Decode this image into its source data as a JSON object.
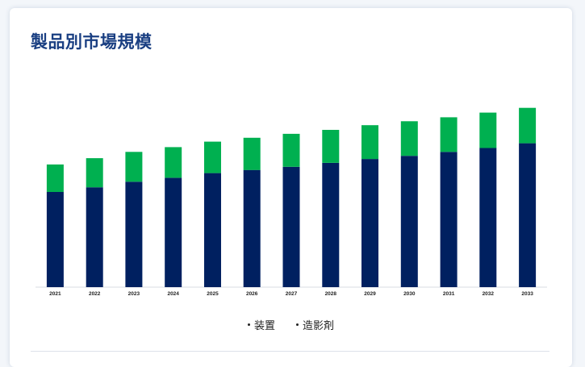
{
  "title": "製品別市場規模",
  "chart_data": {
    "type": "bar",
    "stacked": true,
    "categories": [
      "2021",
      "2022",
      "2023",
      "2024",
      "2025",
      "2026",
      "2027",
      "2028",
      "2029",
      "2030",
      "2031",
      "2032",
      "2033"
    ],
    "series": [
      {
        "name": "装置",
        "color": "#002060",
        "values": [
          121,
          127,
          134,
          139,
          145,
          149,
          153,
          158,
          163,
          167,
          172,
          177,
          183
        ]
      },
      {
        "name": "造影剤",
        "color": "#00b050",
        "values": [
          35,
          37,
          38,
          39,
          40,
          41,
          42,
          42,
          43,
          44,
          44,
          45,
          45
        ]
      }
    ],
    "ylim": [
      0,
      240
    ],
    "grid": false,
    "legend_position": "bottom"
  },
  "legend": [
    {
      "label": "装置"
    },
    {
      "label": "造影剤"
    }
  ]
}
